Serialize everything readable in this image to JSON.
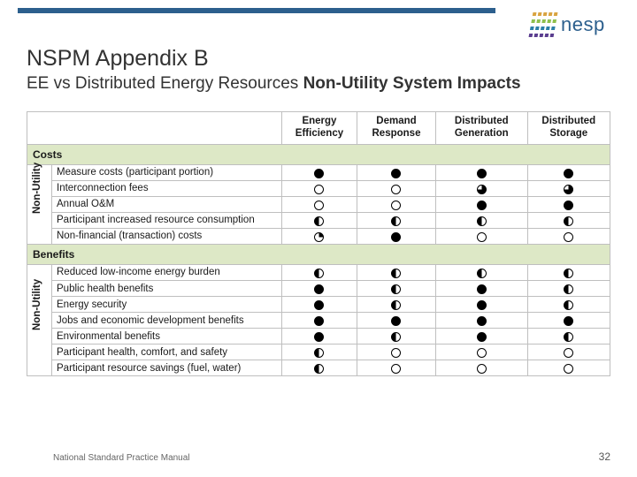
{
  "colors": {
    "brand_bar": "#2c5f8d",
    "section_bg": "#dde8c6",
    "border": "#bfbfbf"
  },
  "logo": {
    "text": "nesp"
  },
  "title": "NSPM Appendix B",
  "subtitle_plain": "EE vs Distributed Energy Resources ",
  "subtitle_bold": "Non-Utility System Impacts",
  "columns": [
    "Energy Efficiency",
    "Demand Response",
    "Distributed Generation",
    "Distributed Storage"
  ],
  "sections": [
    {
      "name": "Costs",
      "vlabel": "Non-Utility",
      "rows": [
        {
          "label": "Measure costs (participant portion)",
          "v": [
            "full",
            "full",
            "full",
            "full"
          ]
        },
        {
          "label": "Interconnection fees",
          "v": [
            "empty",
            "empty",
            "3q",
            "3q"
          ]
        },
        {
          "label": "Annual O&M",
          "v": [
            "empty",
            "empty",
            "full",
            "full"
          ]
        },
        {
          "label": "Participant increased resource consumption",
          "v": [
            "half",
            "half",
            "half",
            "half"
          ]
        },
        {
          "label": "Non-financial (transaction) costs",
          "v": [
            "q",
            "full",
            "empty",
            "empty"
          ]
        }
      ]
    },
    {
      "name": "Benefits",
      "vlabel": "Non-Utility",
      "rows": [
        {
          "label": "Reduced low-income energy burden",
          "v": [
            "half",
            "half",
            "half",
            "half"
          ]
        },
        {
          "label": "Public health benefits",
          "v": [
            "full",
            "half",
            "full",
            "half"
          ]
        },
        {
          "label": "Energy security",
          "v": [
            "full",
            "half",
            "full",
            "half"
          ]
        },
        {
          "label": "Jobs and economic development benefits",
          "v": [
            "full",
            "full",
            "full",
            "full"
          ]
        },
        {
          "label": "Environmental benefits",
          "v": [
            "full",
            "half",
            "full",
            "half"
          ]
        },
        {
          "label": "Participant health, comfort, and safety",
          "v": [
            "half",
            "empty",
            "empty",
            "empty"
          ]
        },
        {
          "label": "Participant resource savings (fuel, water)",
          "v": [
            "half",
            "empty",
            "empty",
            "empty"
          ]
        }
      ]
    }
  ],
  "footer": "National Standard Practice Manual",
  "page": "32"
}
